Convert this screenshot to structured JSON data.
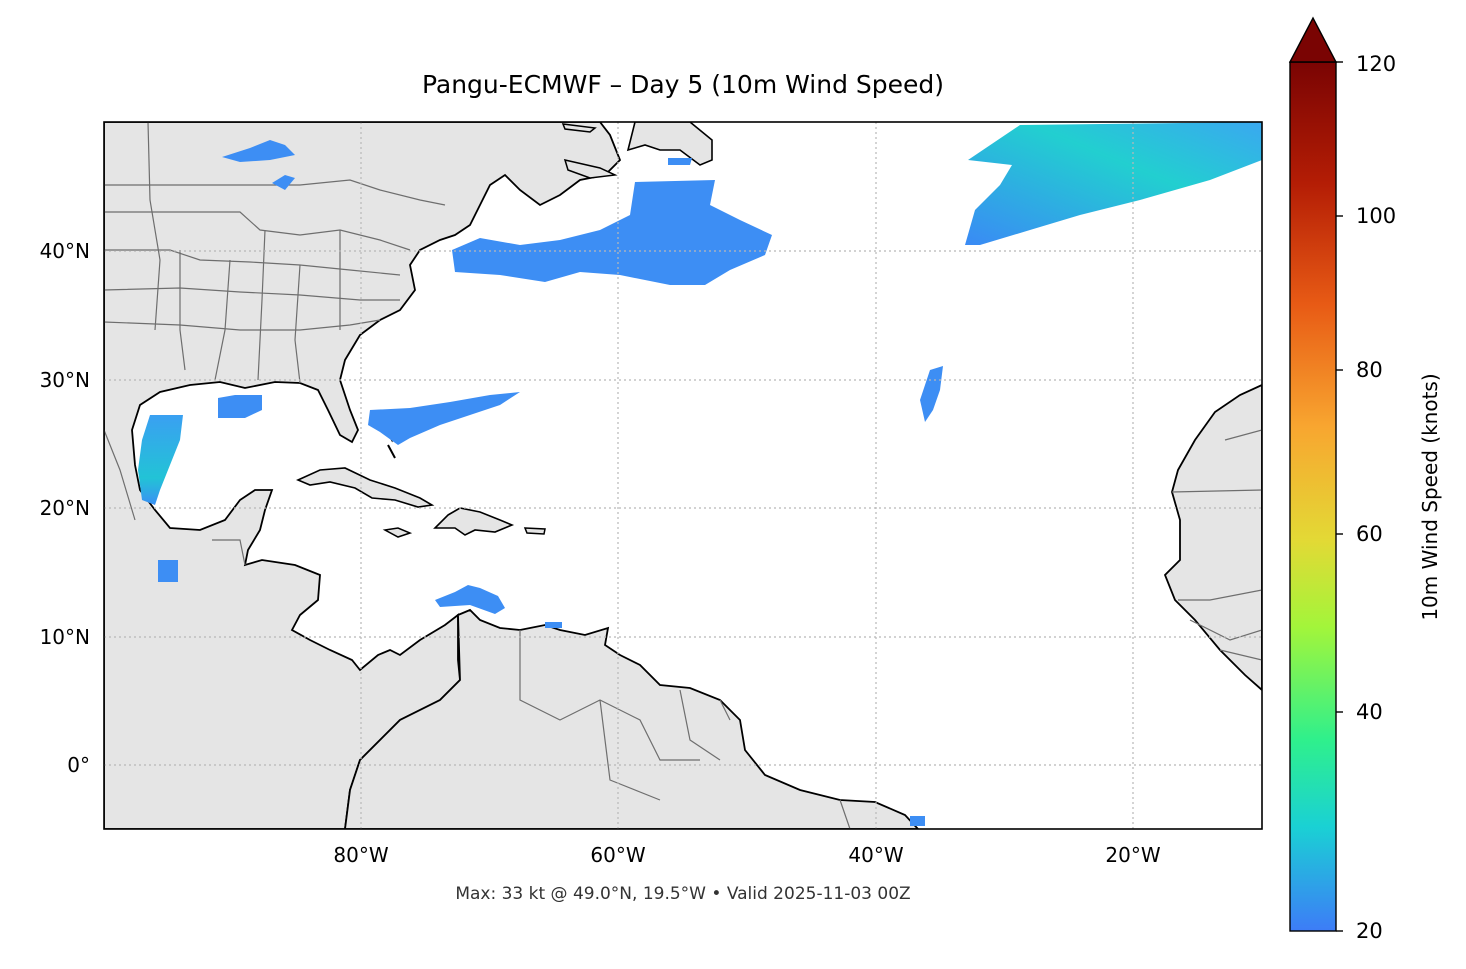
{
  "title": "Pangu-ECMWF – Day 5 (10m Wind Speed)",
  "footer": "Max: 33 kt @ 49.0°N, 19.5°W • Valid 2025-11-03 00Z",
  "lat_labels": [
    "40°N",
    "30°N",
    "20°N",
    "10°N",
    "0°"
  ],
  "lon_labels": [
    "80°W",
    "60°W",
    "40°W",
    "20°W"
  ],
  "colorbar": {
    "title": "10m Wind Speed (knots)",
    "ticks": [
      "120",
      "100",
      "80",
      "60",
      "40",
      "20"
    ],
    "range": [
      20,
      120
    ],
    "extend": "max",
    "colors": [
      "#3d7cf7",
      "#1ad1d4",
      "#2ff08c",
      "#a3f53a",
      "#e3d935",
      "#f8a630",
      "#e85b15",
      "#b41d05",
      "#7a0403"
    ]
  },
  "map": {
    "extent_lon": [
      -100,
      -10
    ],
    "extent_lat": [
      -5,
      50
    ],
    "land_color": "#e5e5e5",
    "coast_color": "#000000",
    "border_color": "#6e6e6e",
    "grid": "dotted"
  }
}
